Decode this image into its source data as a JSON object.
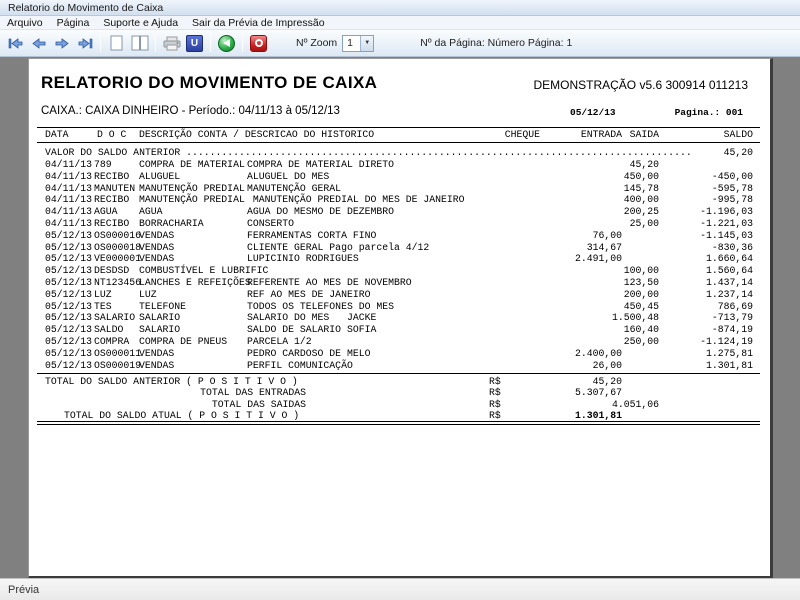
{
  "window": {
    "title": "Relatorio do Movimento de Caixa"
  },
  "menu": {
    "items": [
      {
        "label": "Arquivo"
      },
      {
        "label": "Página"
      },
      {
        "label": "Suporte e Ajuda"
      },
      {
        "label": "Sair da Prévia de Impressão"
      }
    ]
  },
  "toolbar": {
    "icons": [
      "first-page-icon",
      "previous-page-icon",
      "next-page-icon",
      "last-page-icon",
      "single-page-icon",
      "two-pages-icon",
      "printer-icon",
      "u-logo-icon",
      "green-orb-arrow-icon",
      "power-icon"
    ],
    "zoom_label": "Nº Zoom",
    "zoom_value": "1",
    "page_label": "Nº da Página: Número Página: 1"
  },
  "report": {
    "title": "RELATORIO DO MOVIMENTO DE CAIXA",
    "version": "DEMONSTRAÇÃO v5.6 300914 011213",
    "subtitle": "CAIXA.: CAIXA DINHEIRO -  Período.: 04/11/13 à 05/12/13",
    "date": "05/12/13",
    "page": "Pagina.: 001",
    "columns": {
      "data": "DATA",
      "doc": "D O C",
      "descricao": "DESCRIÇÃO CONTA / DESCRICAO DO HISTORICO",
      "cheque": "CHEQUE",
      "entrada": "ENTRADA",
      "saida": "SAIDA",
      "saldo": "SALDO"
    },
    "opening": {
      "text": "VALOR DO SALDO ANTERIOR ......................................................................................",
      "value": "45,20"
    },
    "rows": [
      {
        "date": "04/11/13",
        "doc": "789",
        "conta": "COMPRA DE MATERIAL",
        "historico": "COMPRA DE MATERIAL DIRETO",
        "cheque": "",
        "entrada": "",
        "saida": "45,20",
        "saldo": ""
      },
      {
        "date": "04/11/13",
        "doc": "RECIBO",
        "conta": "ALUGUEL",
        "historico": "ALUGUEL DO MES",
        "cheque": "",
        "entrada": "",
        "saida": "450,00",
        "saldo": "-450,00"
      },
      {
        "date": "04/11/13",
        "doc": "MANUTEN",
        "conta": "MANUTENÇÃO PREDIAL",
        "historico": "MANUTENÇÃO GERAL",
        "cheque": "",
        "entrada": "",
        "saida": "145,78",
        "saldo": "-595,78"
      },
      {
        "date": "04/11/13",
        "doc": "RECIBO",
        "conta": "MANUTENÇÃO PREDIAL",
        "historico": " MANUTENÇÃO PREDIAL DO MES DE JANEIRO",
        "cheque": "",
        "entrada": "",
        "saida": "400,00",
        "saldo": "-995,78"
      },
      {
        "date": "04/11/13",
        "doc": "AGUA",
        "conta": "AGUA",
        "historico": "AGUA DO MESMO DE DEZEMBRO",
        "cheque": "",
        "entrada": "",
        "saida": "200,25",
        "saldo": "-1.196,03"
      },
      {
        "date": "04/11/13",
        "doc": "RECIBO",
        "conta": "BORRACHARIA",
        "historico": "CONSERTO",
        "cheque": "",
        "entrada": "",
        "saida": "25,00",
        "saldo": "-1.221,03"
      },
      {
        "date": "05/12/13",
        "doc": "OS000016",
        "conta": "VENDAS",
        "historico": "FERRAMENTAS CORTA FINO",
        "cheque": "",
        "entrada": "76,00",
        "saida": "",
        "saldo": "-1.145,03"
      },
      {
        "date": "05/12/13",
        "doc": "OS000018",
        "conta": "VENDAS",
        "historico": "CLIENTE GERAL Pago parcela 4/12",
        "cheque": "",
        "entrada": "314,67",
        "saida": "",
        "saldo": "-830,36"
      },
      {
        "date": "05/12/13",
        "doc": "VE000001",
        "conta": "VENDAS",
        "historico": "LUPICINIO RODRIGUES",
        "cheque": "",
        "entrada": "2.491,00",
        "saida": "",
        "saldo": "1.660,64"
      },
      {
        "date": "05/12/13",
        "doc": "DESDSD",
        "conta": "COMBUSTÍVEL E LUBRIFIC",
        "historico": "",
        "cheque": "",
        "entrada": "",
        "saida": "100,00",
        "saldo": "1.560,64"
      },
      {
        "date": "05/12/13",
        "doc": "NT123456",
        "conta": "LANCHES E REFEIÇÕES",
        "historico": "REFERENTE AO MES DE NOVEMBRO",
        "cheque": "",
        "entrada": "",
        "saida": "123,50",
        "saldo": "1.437,14"
      },
      {
        "date": "05/12/13",
        "doc": "LUZ",
        "conta": "LUZ",
        "historico": "REF AO MES DE JANEIRO",
        "cheque": "",
        "entrada": "",
        "saida": "200,00",
        "saldo": "1.237,14"
      },
      {
        "date": "05/12/13",
        "doc": "TES",
        "conta": "TELEFONE",
        "historico": "TODOS OS TELEFONES DO MES",
        "cheque": "",
        "entrada": "",
        "saida": "450,45",
        "saldo": "786,69"
      },
      {
        "date": "05/12/13",
        "doc": "SALARIO",
        "conta": "SALARIO",
        "historico": "SALARIO DO MES   JACKE",
        "cheque": "",
        "entrada": "",
        "saida": "1.500,48",
        "saldo": "-713,79"
      },
      {
        "date": "05/12/13",
        "doc": "SALDO",
        "conta": "SALARIO",
        "historico": "SALDO DE SALARIO SOFIA",
        "cheque": "",
        "entrada": "",
        "saida": "160,40",
        "saldo": "-874,19"
      },
      {
        "date": "05/12/13",
        "doc": "COMPRA",
        "conta": "COMPRA DE PNEUS",
        "historico": "PARCELA 1/2",
        "cheque": "",
        "entrada": "",
        "saida": "250,00",
        "saldo": "-1.124,19"
      },
      {
        "date": "05/12/13",
        "doc": "OS000011",
        "conta": "VENDAS",
        "historico": "PEDRO CARDOSO DE MELO",
        "cheque": "",
        "entrada": "2.400,00",
        "saida": "",
        "saldo": "1.275,81"
      },
      {
        "date": "05/12/13",
        "doc": "OS000019",
        "conta": "VENDAS",
        "historico": "PERFIL COMUNICAÇÃO",
        "cheque": "",
        "entrada": "26,00",
        "saida": "",
        "saldo": "1.301,81"
      }
    ],
    "totals": [
      {
        "label": "TOTAL DO SALDO ANTERIOR ( P O S I T I V O )",
        "align": "l1",
        "currency": "R$",
        "value": "45,20",
        "col": "entrada",
        "bold": false
      },
      {
        "label": "TOTAL DAS ENTRADAS",
        "align": "r",
        "currency": "R$",
        "value": "5.307,67",
        "col": "entrada",
        "bold": false
      },
      {
        "label": "TOTAL DAS SAIDAS",
        "align": "r",
        "currency": "R$",
        "value": "4.051,06",
        "col": "saida",
        "bold": false
      },
      {
        "label": "TOTAL DO SALDO ATUAL ( P O S I T I V O )",
        "align": "l2",
        "currency": "R$",
        "value": "1.301,81",
        "col": "entrada",
        "bold": true
      }
    ]
  },
  "statusbar": {
    "text": "Prévia"
  }
}
